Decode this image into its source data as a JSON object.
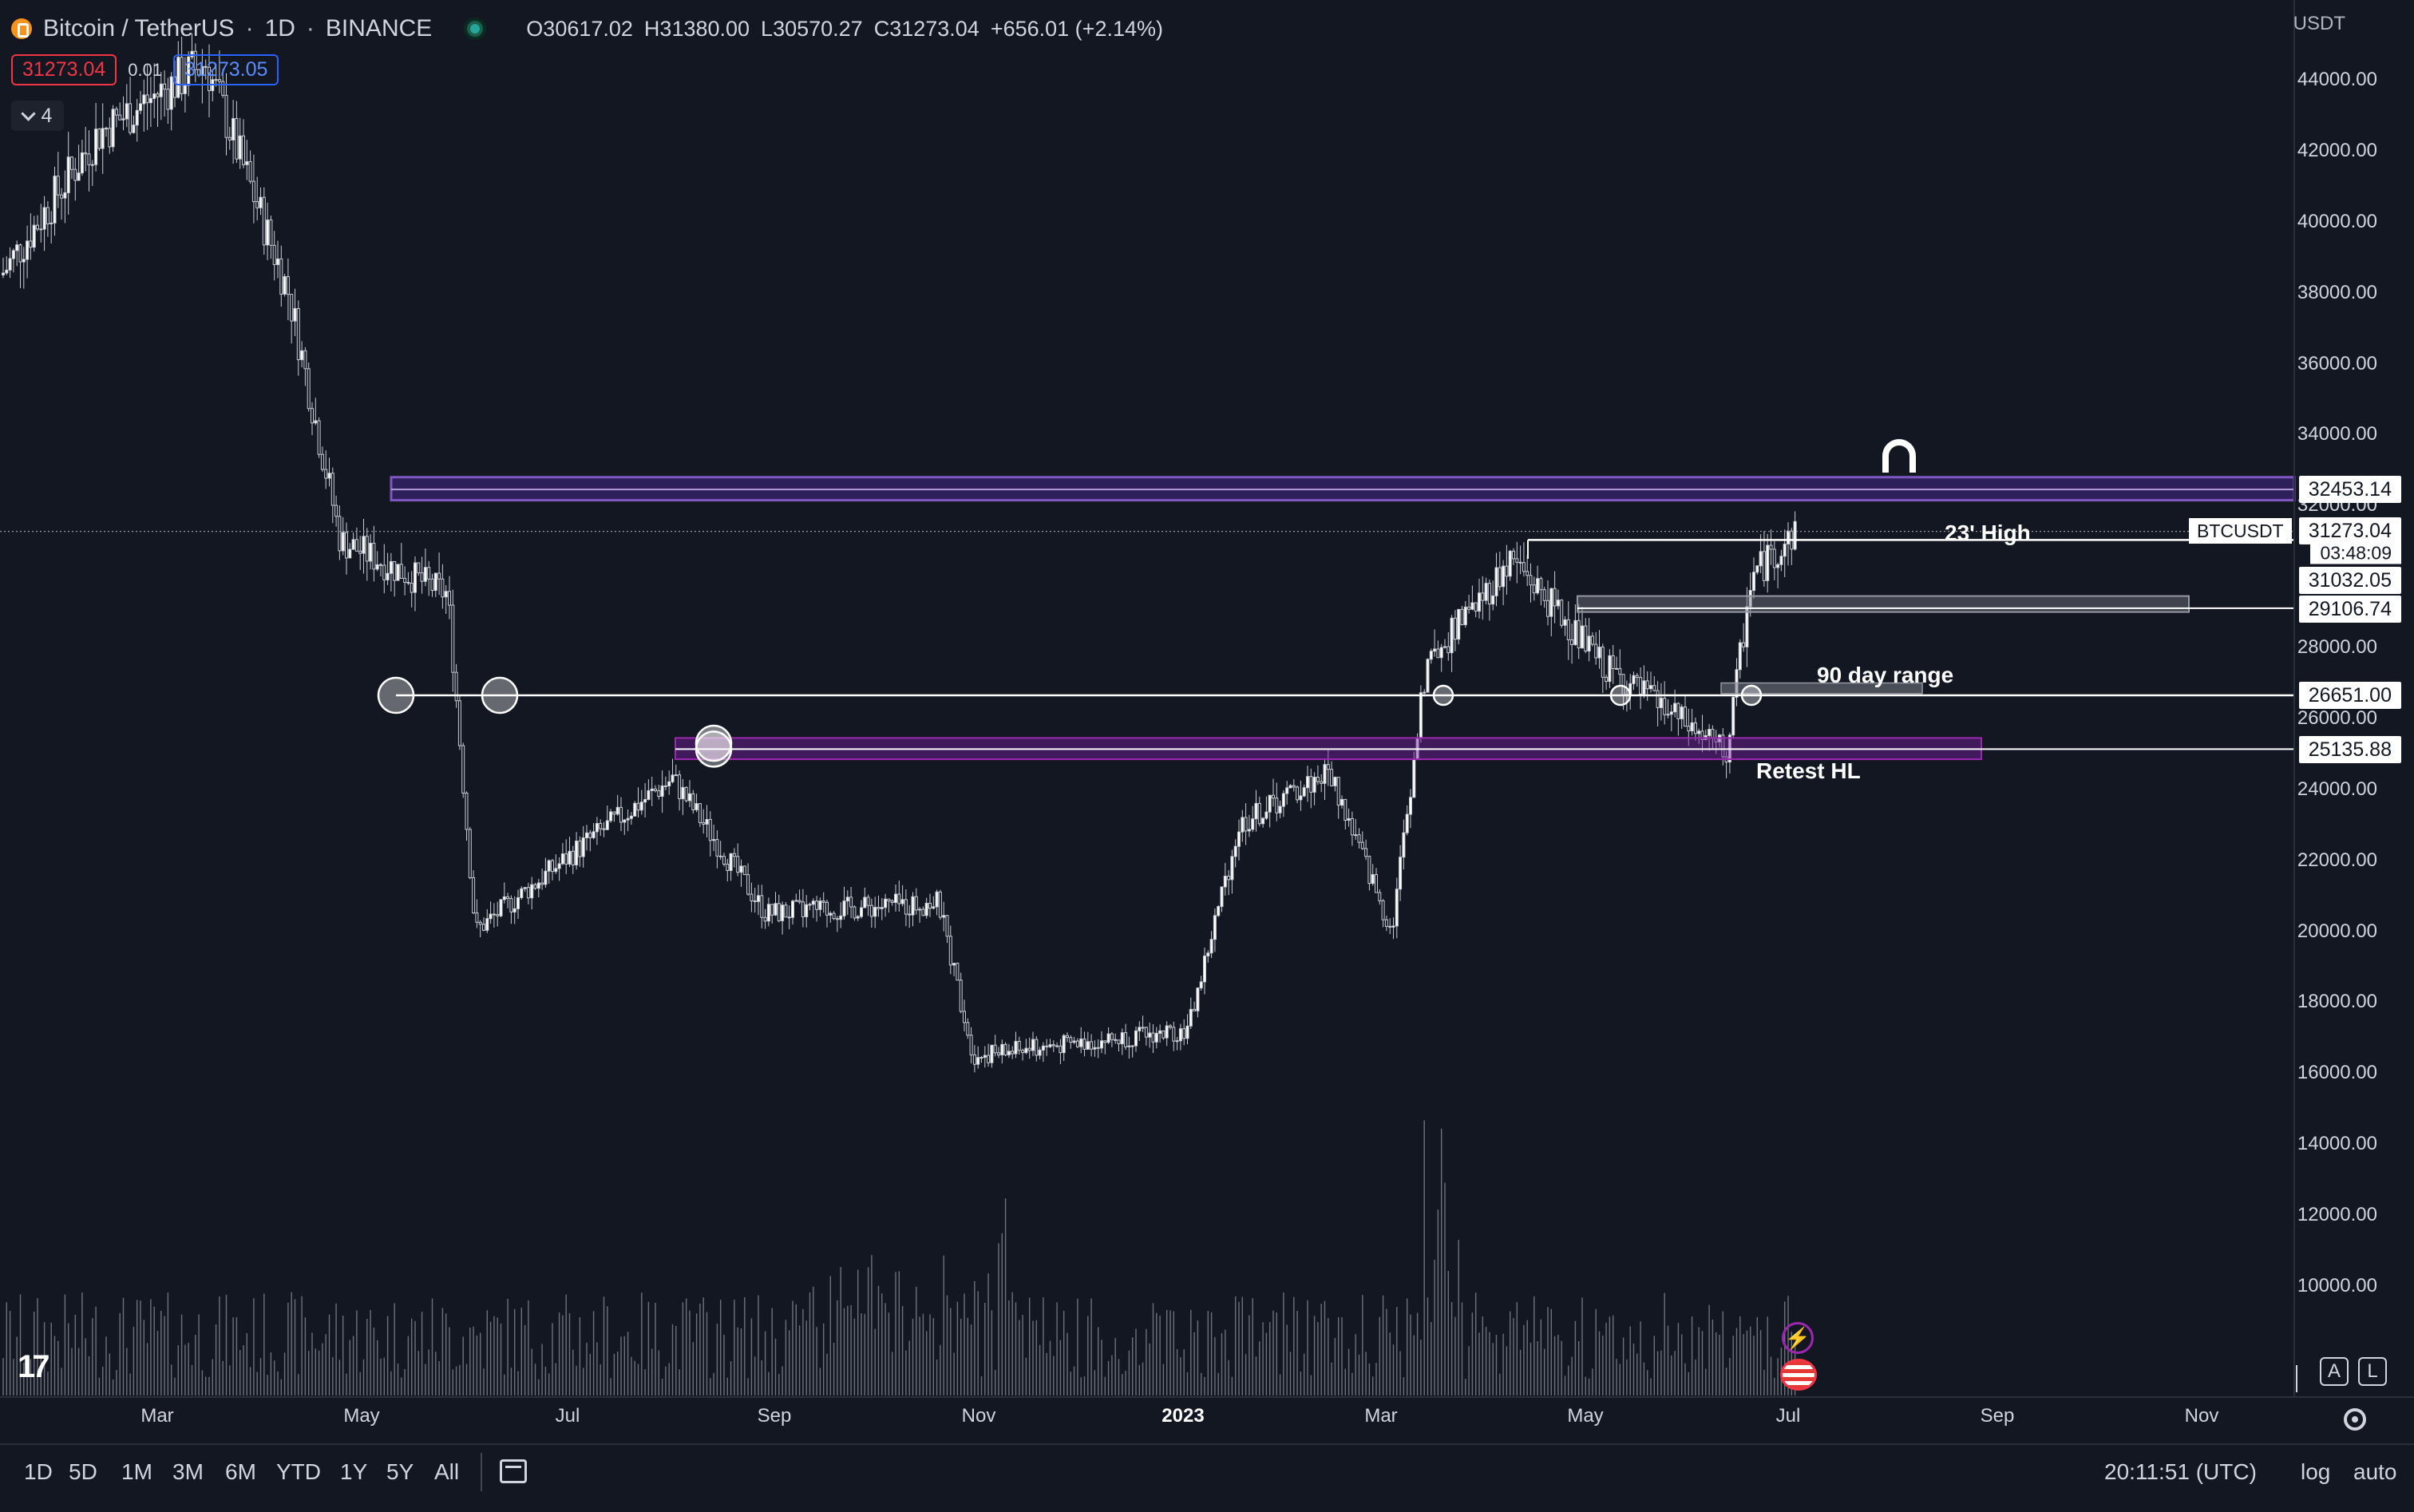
{
  "symbol": {
    "title": "Bitcoin / TetherUS",
    "interval": "1D",
    "exchange": "BINANCE",
    "ohlc": {
      "open_label": "O",
      "open": "30617.02",
      "high_label": "H",
      "high": "31380.00",
      "low_label": "L",
      "low": "30570.27",
      "close_label": "C",
      "close": "31273.04",
      "change": "+656.01 (+2.14%)"
    },
    "sell_price": "31273.04",
    "spread": "0.01",
    "buy_price": "31273.05",
    "indicators_count": "4",
    "currency": "USDT"
  },
  "price_axis": {
    "ticks": [
      "44000.00",
      "42000.00",
      "40000.00",
      "38000.00",
      "36000.00",
      "34000.00",
      "32000.00",
      "28000.00",
      "26000.00",
      "24000.00",
      "22000.00",
      "20000.00",
      "18000.00",
      "16000.00",
      "14000.00",
      "12000.00",
      "10000.00"
    ],
    "labels": {
      "upper_zone": "32453.14",
      "current": "31273.04",
      "countdown": "03:48:09",
      "level_31032": "31032.05",
      "level_29106": "29106.74",
      "level_26651": "26651.00",
      "level_25135": "25135.88"
    },
    "symbol_tag": "BTCUSDT"
  },
  "annotations": {
    "high_23": "23' High",
    "range_90": "90 day range",
    "retest": "Retest HL"
  },
  "time_axis": [
    "Mar",
    "May",
    "Jul",
    "Sep",
    "Nov",
    "2023",
    "Mar",
    "May",
    "Jul",
    "Sep",
    "Nov"
  ],
  "range_buttons": [
    "1D",
    "5D",
    "1M",
    "3M",
    "6M",
    "YTD",
    "1Y",
    "5Y",
    "All"
  ],
  "clock": "20:11:51 (UTC)",
  "scale_buttons": {
    "log": "log",
    "auto": "auto",
    "a": "A",
    "l": "L"
  },
  "logo_text": "17",
  "colors": {
    "background": "#131722",
    "zone_purple": "#7b1fa2",
    "zone_blue": "#5c2fc2",
    "line_white": "#ffffff",
    "candle": "#d1d4dc"
  },
  "chart_data": {
    "type": "candlestick",
    "x_range": [
      "2022-02",
      "2023-11"
    ],
    "ylim": [
      10000,
      44000
    ],
    "horizontal_levels": [
      32453.14,
      31032.05,
      29106.74,
      26651.0,
      25135.88
    ],
    "path_points": [
      {
        "t": "2022-02-01",
        "p": 38500
      },
      {
        "t": "2022-03-01",
        "p": 42500
      },
      {
        "t": "2022-04-01",
        "p": 44500
      },
      {
        "t": "2022-04-25",
        "p": 38000
      },
      {
        "t": "2022-05-10",
        "p": 31000
      },
      {
        "t": "2022-06-10",
        "p": 29500
      },
      {
        "t": "2022-06-18",
        "p": 20000
      },
      {
        "t": "2022-07-20",
        "p": 22500
      },
      {
        "t": "2022-08-14",
        "p": 24300
      },
      {
        "t": "2022-09-10",
        "p": 20500
      },
      {
        "t": "2022-10-30",
        "p": 20800
      },
      {
        "t": "2022-11-09",
        "p": 16500
      },
      {
        "t": "2023-01-10",
        "p": 17200
      },
      {
        "t": "2023-01-25",
        "p": 23000
      },
      {
        "t": "2023-02-20",
        "p": 24500
      },
      {
        "t": "2023-03-10",
        "p": 20000
      },
      {
        "t": "2023-03-20",
        "p": 27500
      },
      {
        "t": "2023-04-14",
        "p": 30500
      },
      {
        "t": "2023-05-10",
        "p": 27500
      },
      {
        "t": "2023-06-15",
        "p": 25000
      },
      {
        "t": "2023-06-22",
        "p": 30000
      },
      {
        "t": "2023-07-05",
        "p": 31273
      }
    ]
  }
}
